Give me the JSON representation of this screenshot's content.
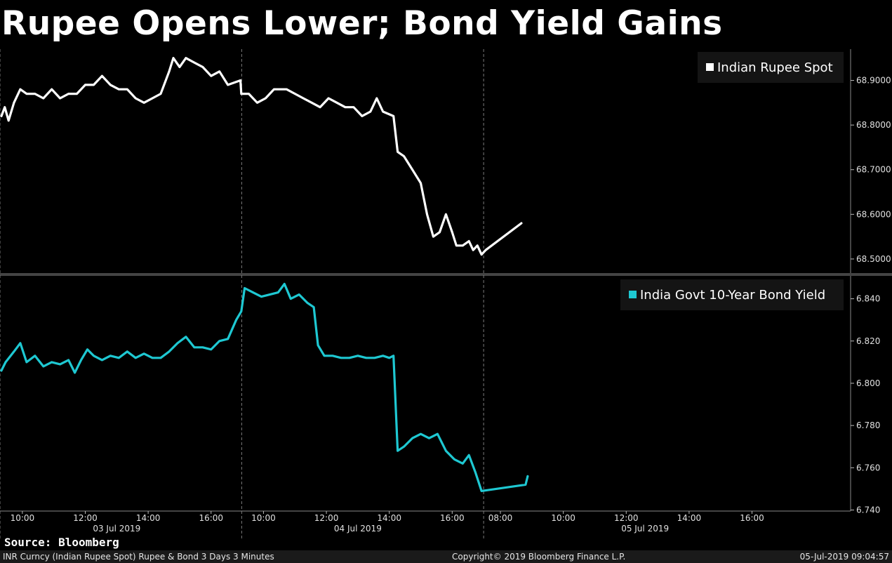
{
  "title": "Rupee Opens Lower; Bond Yield Gains",
  "source": "Source: Bloomberg",
  "footer": {
    "left": "INR Curncy (Indian Rupee Spot) Rupee & Bond 3 Days 3 Minutes",
    "center": "Copyright© 2019 Bloomberg Finance L.P.",
    "right": "05-Jul-2019 09:04:57"
  },
  "colors": {
    "background": "#000000",
    "rupee": "#ffffff",
    "bond": "#1ec8d2",
    "grid": "#7a7a7a"
  },
  "chart_data": [
    {
      "type": "line",
      "legend": "Indian Rupee Spot",
      "legend_position": "top-right",
      "ylim": [
        68.47,
        68.97
      ],
      "yticks": [
        "68.9000",
        "68.8000",
        "68.7000",
        "68.6000",
        "68.5000"
      ],
      "series": [
        {
          "name": "Indian Rupee Spot",
          "points": [
            [
              0,
              68.82
            ],
            [
              0.08,
              68.84
            ],
            [
              0.17,
              68.81
            ],
            [
              0.3,
              68.85
            ],
            [
              0.45,
              68.88
            ],
            [
              0.6,
              68.87
            ],
            [
              0.8,
              68.87
            ],
            [
              1.0,
              68.86
            ],
            [
              1.2,
              68.88
            ],
            [
              1.4,
              68.86
            ],
            [
              1.6,
              68.87
            ],
            [
              1.8,
              68.87
            ],
            [
              2.0,
              68.89
            ],
            [
              2.2,
              68.89
            ],
            [
              2.4,
              68.91
            ],
            [
              2.6,
              68.89
            ],
            [
              2.8,
              68.88
            ],
            [
              3.0,
              68.88
            ],
            [
              3.2,
              68.86
            ],
            [
              3.4,
              68.85
            ],
            [
              3.6,
              68.86
            ],
            [
              3.8,
              68.87
            ],
            [
              4.0,
              68.92
            ],
            [
              4.1,
              68.95
            ],
            [
              4.25,
              68.93
            ],
            [
              4.4,
              68.95
            ],
            [
              4.6,
              68.94
            ],
            [
              4.8,
              68.93
            ],
            [
              5.0,
              68.91
            ],
            [
              5.2,
              68.92
            ],
            [
              5.4,
              68.89
            ],
            [
              5.7,
              68.9
            ],
            [
              5.72,
              68.87
            ],
            [
              5.9,
              68.87
            ],
            [
              6.1,
              68.85
            ],
            [
              6.3,
              68.86
            ],
            [
              6.5,
              68.88
            ],
            [
              6.8,
              68.88
            ],
            [
              7.0,
              68.87
            ],
            [
              7.2,
              68.86
            ],
            [
              7.4,
              68.85
            ],
            [
              7.6,
              68.84
            ],
            [
              7.8,
              68.86
            ],
            [
              8.0,
              68.85
            ],
            [
              8.2,
              68.84
            ],
            [
              8.4,
              68.84
            ],
            [
              8.6,
              68.82
            ],
            [
              8.8,
              68.83
            ],
            [
              8.95,
              68.86
            ],
            [
              9.1,
              68.83
            ],
            [
              9.35,
              68.82
            ],
            [
              9.45,
              68.74
            ],
            [
              9.6,
              68.73
            ],
            [
              9.8,
              68.7
            ],
            [
              10.0,
              68.67
            ],
            [
              10.15,
              68.6
            ],
            [
              10.3,
              68.55
            ],
            [
              10.45,
              68.56
            ],
            [
              10.6,
              68.6
            ],
            [
              10.75,
              68.56
            ],
            [
              10.85,
              68.53
            ],
            [
              11.0,
              68.53
            ],
            [
              11.15,
              68.54
            ],
            [
              11.25,
              68.52
            ],
            [
              11.35,
              68.53
            ],
            [
              11.45,
              68.51
            ],
            [
              11.55,
              68.52
            ],
            [
              12.4,
              68.58
            ]
          ]
        }
      ]
    },
    {
      "type": "line",
      "legend": "India Govt 10-Year Bond Yield",
      "legend_position": "top-right",
      "ylim": [
        6.7395,
        6.8505
      ],
      "yticks": [
        "6.840",
        "6.820",
        "6.800",
        "6.780",
        "6.760",
        "6.740"
      ],
      "series": [
        {
          "name": "India Govt 10-Year Bond Yield",
          "points": [
            [
              0,
              6.806
            ],
            [
              0.1,
              6.81
            ],
            [
              0.3,
              6.815
            ],
            [
              0.45,
              6.819
            ],
            [
              0.6,
              6.81
            ],
            [
              0.8,
              6.813
            ],
            [
              1.0,
              6.808
            ],
            [
              1.2,
              6.81
            ],
            [
              1.4,
              6.809
            ],
            [
              1.6,
              6.811
            ],
            [
              1.75,
              6.805
            ],
            [
              1.9,
              6.811
            ],
            [
              2.05,
              6.816
            ],
            [
              2.2,
              6.813
            ],
            [
              2.4,
              6.811
            ],
            [
              2.6,
              6.813
            ],
            [
              2.8,
              6.812
            ],
            [
              3.0,
              6.815
            ],
            [
              3.2,
              6.812
            ],
            [
              3.4,
              6.814
            ],
            [
              3.6,
              6.812
            ],
            [
              3.8,
              6.812
            ],
            [
              4.0,
              6.815
            ],
            [
              4.2,
              6.819
            ],
            [
              4.4,
              6.822
            ],
            [
              4.6,
              6.817
            ],
            [
              4.8,
              6.817
            ],
            [
              5.0,
              6.816
            ],
            [
              5.2,
              6.82
            ],
            [
              5.4,
              6.821
            ],
            [
              5.6,
              6.83
            ],
            [
              5.72,
              6.834
            ],
            [
              5.8,
              6.845
            ],
            [
              6.0,
              6.843
            ],
            [
              6.2,
              6.841
            ],
            [
              6.4,
              6.842
            ],
            [
              6.6,
              6.843
            ],
            [
              6.75,
              6.847
            ],
            [
              6.9,
              6.84
            ],
            [
              7.1,
              6.842
            ],
            [
              7.3,
              6.838
            ],
            [
              7.45,
              6.836
            ],
            [
              7.55,
              6.818
            ],
            [
              7.7,
              6.813
            ],
            [
              7.9,
              6.813
            ],
            [
              8.1,
              6.812
            ],
            [
              8.3,
              6.812
            ],
            [
              8.5,
              6.813
            ],
            [
              8.7,
              6.812
            ],
            [
              8.9,
              6.812
            ],
            [
              9.1,
              6.813
            ],
            [
              9.25,
              6.812
            ],
            [
              9.35,
              6.813
            ],
            [
              9.45,
              6.768
            ],
            [
              9.6,
              6.77
            ],
            [
              9.8,
              6.774
            ],
            [
              10.0,
              6.776
            ],
            [
              10.2,
              6.774
            ],
            [
              10.4,
              6.776
            ],
            [
              10.6,
              6.768
            ],
            [
              10.8,
              6.764
            ],
            [
              11.0,
              6.762
            ],
            [
              11.15,
              6.766
            ],
            [
              11.3,
              6.758
            ],
            [
              11.45,
              6.749
            ],
            [
              12.5,
              6.752
            ],
            [
              12.55,
              6.756
            ]
          ]
        }
      ]
    }
  ],
  "x_axis": {
    "ticks": [
      {
        "t": 0.5,
        "label": "10:00"
      },
      {
        "t": 2.0,
        "label": "12:00"
      },
      {
        "t": 3.5,
        "label": "14:00"
      },
      {
        "t": 5.0,
        "label": "16:00"
      },
      {
        "t": 6.25,
        "label": "10:00"
      },
      {
        "t": 7.75,
        "label": "12:00"
      },
      {
        "t": 9.25,
        "label": "14:00"
      },
      {
        "t": 10.75,
        "label": "16:00"
      },
      {
        "t": 11.9,
        "label": "08:00"
      },
      {
        "t": 13.4,
        "label": "10:00"
      },
      {
        "t": 14.9,
        "label": "12:00"
      },
      {
        "t": 16.4,
        "label": "14:00"
      },
      {
        "t": 17.9,
        "label": "16:00"
      }
    ],
    "days": [
      {
        "t": 2.75,
        "label": "03 Jul 2019"
      },
      {
        "t": 8.5,
        "label": "04 Jul 2019"
      },
      {
        "t": 15.35,
        "label": "05 Jul 2019"
      }
    ],
    "day_separators": [
      5.73,
      11.5
    ]
  }
}
